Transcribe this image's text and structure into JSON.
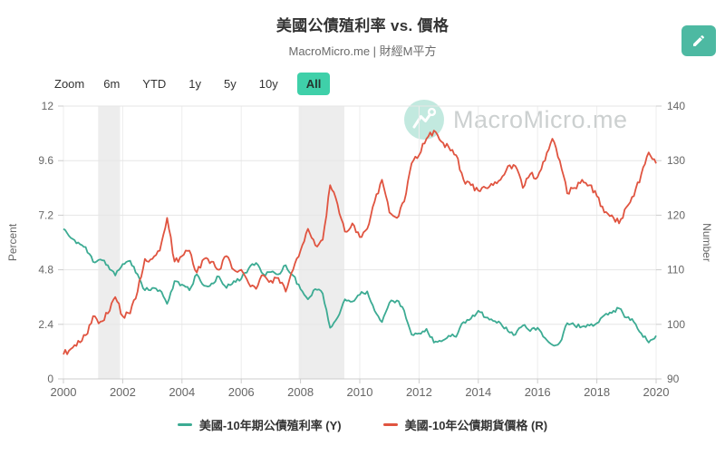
{
  "header": {
    "title": "美國公債殖利率 vs. 價格",
    "subtitle": "MacroMicro.me | 財經M平方"
  },
  "toolbar": {
    "zoom_label": "Zoom",
    "buttons": [
      "6m",
      "YTD",
      "1y",
      "5y",
      "10y",
      "All"
    ],
    "active": "All"
  },
  "edit_button": {
    "icon": "pencil-icon"
  },
  "watermark": {
    "text": "MacroMicro.me",
    "icon": "macromicro-logo"
  },
  "colors": {
    "accent_teal": "#3fd0a9",
    "edit_button": "#4db9a2",
    "series_yield": "#3cab93",
    "series_price": "#e05440",
    "grid": "#e6e6e6",
    "vgrid": "#ececec",
    "recession_band": "#ededed",
    "axis_line": "#cccccc",
    "axis_label": "#666666",
    "watermark_text": "#ccd0d0",
    "watermark_circle": "#c2e9df"
  },
  "chart_data": {
    "type": "line",
    "title": "美國公債殖利率 vs. 價格",
    "subtitle": "MacroMicro.me | 財經M平方",
    "grid": true,
    "legend_position": "bottom",
    "x_ticks": [
      2000,
      2002,
      2004,
      2006,
      2008,
      2010,
      2012,
      2014,
      2016,
      2018,
      2020
    ],
    "left_axis": {
      "label": "Percent",
      "min": 0,
      "max": 12,
      "ticks": [
        0,
        2.4,
        4.8,
        7.2,
        9.6,
        12
      ]
    },
    "right_axis": {
      "label": "Number",
      "min": 90,
      "max": 140,
      "ticks": [
        90,
        100,
        110,
        120,
        130,
        140
      ]
    },
    "recession_bands": [
      {
        "from": 2001.17,
        "to": 2001.91
      },
      {
        "from": 2007.94,
        "to": 2009.48
      }
    ],
    "x": [
      2000,
      2000.25,
      2000.5,
      2000.75,
      2001,
      2001.25,
      2001.5,
      2001.75,
      2002,
      2002.25,
      2002.5,
      2002.75,
      2003,
      2003.25,
      2003.5,
      2003.75,
      2004,
      2004.25,
      2004.5,
      2004.75,
      2005,
      2005.25,
      2005.5,
      2005.75,
      2006,
      2006.25,
      2006.5,
      2006.75,
      2007,
      2007.25,
      2007.5,
      2007.75,
      2008,
      2008.25,
      2008.5,
      2008.75,
      2009,
      2009.25,
      2009.5,
      2009.75,
      2010,
      2010.25,
      2010.5,
      2010.75,
      2011,
      2011.25,
      2011.5,
      2011.75,
      2012,
      2012.25,
      2012.5,
      2012.75,
      2013,
      2013.25,
      2013.5,
      2013.75,
      2014,
      2014.25,
      2014.5,
      2014.75,
      2015,
      2015.25,
      2015.5,
      2015.75,
      2016,
      2016.25,
      2016.5,
      2016.75,
      2017,
      2017.25,
      2017.5,
      2017.75,
      2018,
      2018.25,
      2018.5,
      2018.75,
      2019,
      2019.25,
      2019.5,
      2019.75,
      2020
    ],
    "series": [
      {
        "name": "美國-10年期公債殖利率 (Y)",
        "axis": "left",
        "color": "#3cab93",
        "values": [
          6.6,
          6.2,
          6.0,
          5.8,
          5.15,
          5.25,
          5.0,
          4.55,
          5.05,
          5.2,
          4.6,
          3.9,
          4.0,
          3.9,
          3.3,
          4.3,
          4.15,
          3.9,
          4.6,
          4.1,
          4.2,
          4.5,
          4.0,
          4.3,
          4.4,
          4.85,
          5.1,
          4.6,
          4.7,
          4.6,
          5.0,
          4.55,
          3.95,
          3.5,
          3.95,
          3.75,
          2.25,
          2.7,
          3.5,
          3.4,
          3.7,
          3.85,
          3.0,
          2.5,
          3.35,
          3.45,
          3.0,
          1.95,
          2.0,
          2.2,
          1.6,
          1.65,
          1.9,
          1.85,
          2.5,
          2.65,
          3.0,
          2.7,
          2.55,
          2.45,
          2.1,
          1.95,
          2.35,
          2.1,
          2.25,
          1.8,
          1.5,
          1.6,
          2.45,
          2.35,
          2.3,
          2.35,
          2.45,
          2.8,
          2.9,
          3.1,
          2.7,
          2.5,
          2.0,
          1.6,
          1.9
        ]
      },
      {
        "name": "美國-10年公債期貨價格 (R)",
        "axis": "right",
        "color": "#e05440",
        "values": [
          94.5,
          95.5,
          97.0,
          98.0,
          101.5,
          100.5,
          102.0,
          105.0,
          101.5,
          102.0,
          106.0,
          112.0,
          112.0,
          113.5,
          119.5,
          111.5,
          112.5,
          113.5,
          109.5,
          112.0,
          111.5,
          110.0,
          112.5,
          110.0,
          110.0,
          107.5,
          106.5,
          109.0,
          108.0,
          108.5,
          106.0,
          110.0,
          113.5,
          117.5,
          114.5,
          115.5,
          125.5,
          122.0,
          117.0,
          118.5,
          116.0,
          117.5,
          122.5,
          126.5,
          120.5,
          119.5,
          122.5,
          129.5,
          131.0,
          134.0,
          135.5,
          133.5,
          132.5,
          131.0,
          126.5,
          125.5,
          124.5,
          125.0,
          125.5,
          126.5,
          129.0,
          129.0,
          125.0,
          127.5,
          127.0,
          130.0,
          134.0,
          130.0,
          124.0,
          125.0,
          126.5,
          125.5,
          123.5,
          120.5,
          120.0,
          118.5,
          121.5,
          123.5,
          127.5,
          131.5,
          129.5
        ]
      }
    ]
  }
}
